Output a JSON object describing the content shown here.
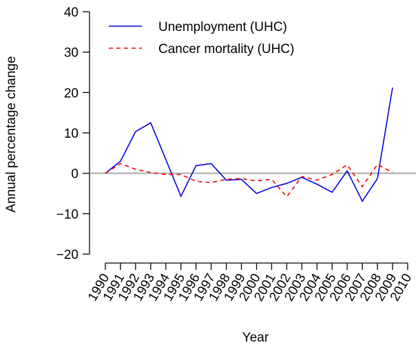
{
  "chart_data": {
    "type": "line",
    "x_label": "Year",
    "y_label": "Annual percentage change",
    "x": [
      1990,
      1991,
      1992,
      1993,
      1994,
      1995,
      1996,
      1997,
      1998,
      1999,
      2000,
      2001,
      2002,
      2003,
      2004,
      2005,
      2006,
      2007,
      2008,
      2009
    ],
    "series": [
      {
        "name": "Unemployment (UHC)",
        "color": "#0000dd",
        "dash": "solid",
        "values": [
          0,
          3,
          10.3,
          12.5,
          3.4,
          -5.7,
          1.9,
          2.4,
          -1.7,
          -1.5,
          -5,
          -3.5,
          -2.5,
          -1,
          -2.7,
          -4.7,
          0.6,
          -6.9,
          -1.3,
          21.2
        ]
      },
      {
        "name": "Cancer mortality (UHC)",
        "color": "#ee0000",
        "dash": "dashed",
        "values": [
          0,
          2.4,
          1,
          0.2,
          -0.3,
          -0.3,
          -2,
          -2.3,
          -1.5,
          -1.3,
          -1.9,
          -1.5,
          -5.8,
          -0.8,
          -1.7,
          -0.3,
          2.1,
          -3.3,
          2.2,
          0.2
        ]
      }
    ],
    "xlim": [
      1990,
      2010
    ],
    "xticks": [
      1990,
      1991,
      1992,
      1993,
      1994,
      1995,
      1996,
      1997,
      1998,
      1999,
      2000,
      2001,
      2002,
      2003,
      2004,
      2005,
      2006,
      2007,
      2008,
      2009,
      2010
    ],
    "ylim": [
      -20,
      40
    ],
    "yticks": [
      {
        "value": -20,
        "label": "−20"
      },
      {
        "value": -10,
        "label": "−10"
      },
      0,
      10,
      20,
      30,
      40
    ],
    "reference_line": 0,
    "reference_color": "#aaaaaa",
    "legend": "top-left"
  }
}
